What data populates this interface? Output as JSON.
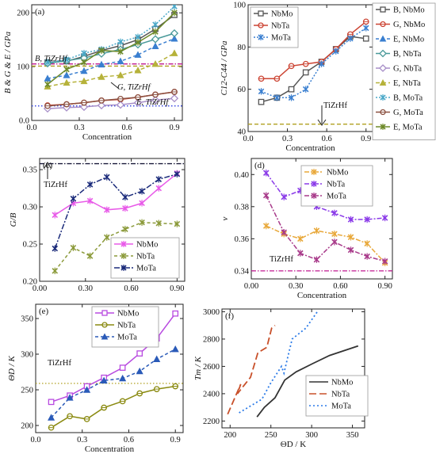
{
  "figure": {
    "panels": {
      "a": {
        "tag": "(a)",
        "ylabel": "B & G & E / GPa",
        "xlabel": "Concentration",
        "annotations": [
          "B, TiZrHf",
          "G, TiZrHf",
          "E, TiZrHf"
        ]
      },
      "b": {
        "tag": "(b)",
        "ylabel": "C12-C44 / GPa",
        "xlabel": "Concentration",
        "annotations": [
          "TiZrHf"
        ]
      },
      "c": {
        "tag": "(c)",
        "ylabel": "G/B",
        "xlabel": "Concentration",
        "annotations": [
          "TiZrHf"
        ]
      },
      "d": {
        "tag": "(d)",
        "ylabel": "ν",
        "xlabel": "Concentration",
        "annotations": [
          "TiZrHf"
        ]
      },
      "e": {
        "tag": "(e)",
        "ylabel": "ΘD / K",
        "xlabel": "Concentration",
        "annotations": [
          "TiZrHf"
        ]
      },
      "f": {
        "tag": "(f)",
        "ylabel": "Tm / K",
        "xlabel": "ΘD / K",
        "annotations": []
      }
    },
    "colors": {
      "NbMo": "#555555",
      "NbTa": "#cc4433",
      "MoTa": "#3a7fd0",
      "B_NbTa": "#4a9a9a",
      "G_NbTa": "#a88fc8",
      "E_NbTa": "#b6b23a",
      "MoTa_dotted": "#4aa8c8",
      "G_MoTa": "#8b5040",
      "E_MoTa": "#6e8a2a",
      "c_NbMo": "#e85ae8",
      "c_NbTa": "#8b9a3a",
      "c_MoTa": "#1a2a7a",
      "d_NbMo": "#e8a83a",
      "d_NbTa": "#8a3ae8",
      "d_MoTa": "#a83a8a",
      "e_NbMo": "#b84ae0",
      "e_NbTa": "#8a8a10",
      "e_MoTa": "#2a5ab8",
      "f_NbTa": "#c8502a",
      "f_MoTa": "#2a7ae8",
      "ref_magenta": "#c01890",
      "ref_blue": "#2a3ae0",
      "ref_olive": "#b0a020",
      "ref_black": "#1a1a3a"
    }
  },
  "chart_data": [
    {
      "panel": "a",
      "type": "line",
      "xlabel": "Concentration",
      "ylabel": "B & G & E / GPa",
      "xlim": [
        0,
        0.95
      ],
      "ylim": [
        0,
        215
      ],
      "xticks": [
        0.0,
        0.3,
        0.6,
        0.9
      ],
      "yticks": [
        0,
        100,
        200
      ],
      "x": [
        0.1,
        0.22,
        0.33,
        0.44,
        0.56,
        0.67,
        0.78,
        0.9
      ],
      "series": [
        {
          "name": "B, NbMo",
          "marker": "square",
          "values": [
            108,
            110,
            119,
            130,
            139,
            150,
            170,
            196
          ]
        },
        {
          "name": "G, NbMo",
          "marker": "circle",
          "values": [
            28,
            30,
            33,
            37,
            39,
            43,
            48,
            53
          ]
        },
        {
          "name": "E, NbMo",
          "marker": "triangle",
          "values": [
            78,
            84,
            92,
            104,
            110,
            122,
            138,
            152
          ]
        },
        {
          "name": "B, NbTa",
          "marker": "diamond",
          "values": [
            106,
            111,
            116,
            124,
            132,
            141,
            151,
            162
          ]
        },
        {
          "name": "G, NbTa",
          "marker": "diamond",
          "values": [
            22,
            24,
            25,
            28,
            29,
            33,
            38,
            41
          ]
        },
        {
          "name": "E, NbTa",
          "marker": "triangle",
          "values": [
            63,
            70,
            73,
            81,
            84,
            93,
            105,
            125
          ]
        },
        {
          "name": "B, MoTa",
          "marker": "star",
          "values": [
            108,
            113,
            125,
            132,
            146,
            155,
            178,
            212
          ]
        },
        {
          "name": "G, MoTa",
          "marker": "circle",
          "values": [
            27,
            30,
            33,
            37,
            40,
            43,
            48,
            53
          ]
        },
        {
          "name": "E, MoTa",
          "marker": "star",
          "values": [
            67,
            95,
            108,
            130,
            128,
            145,
            165,
            200
          ]
        }
      ],
      "references": [
        {
          "label": "B, TiZrHf",
          "value": 105,
          "style": "dash-dot",
          "color": "#c01890"
        },
        {
          "label": "G, TiZrHf",
          "value": 101,
          "style": "dashed",
          "color": "#b0a020"
        },
        {
          "label": "E, TiZrHf",
          "value": 27,
          "style": "dotted",
          "color": "#2a3ae0"
        }
      ],
      "legend": "outside-right"
    },
    {
      "panel": "b",
      "type": "line",
      "xlabel": "Concentration",
      "ylabel": "C12-C44 / GPa",
      "xlim": [
        0,
        0.95
      ],
      "ylim": [
        40,
        100
      ],
      "xticks": [
        0.0,
        0.3,
        0.6,
        0.9
      ],
      "yticks": [
        40,
        60,
        80,
        100
      ],
      "x": [
        0.1,
        0.22,
        0.33,
        0.44,
        0.56,
        0.67,
        0.78,
        0.9
      ],
      "series": [
        {
          "name": "NbMo",
          "marker": "square",
          "values": [
            54,
            56,
            60,
            68,
            73,
            79,
            85,
            84
          ]
        },
        {
          "name": "NbTa",
          "marker": "circle",
          "values": [
            65,
            65,
            71,
            72,
            73,
            79,
            86,
            92
          ]
        },
        {
          "name": "MoTa",
          "marker": "star",
          "values": [
            59,
            56,
            56,
            60,
            72,
            78,
            84,
            89
          ]
        }
      ],
      "references": [
        {
          "label": "TiZrHf",
          "value": 43.5,
          "style": "dashed",
          "color": "#b0a020"
        }
      ],
      "legend": "top-left"
    },
    {
      "panel": "c",
      "type": "line",
      "xlabel": "",
      "ylabel": "G/B",
      "xlim": [
        0,
        0.95
      ],
      "ylim": [
        0.2,
        0.365
      ],
      "xticks": [
        0.0,
        0.3,
        0.6,
        0.9
      ],
      "yticks": [
        0.2,
        0.25,
        0.3,
        0.35
      ],
      "x": [
        0.1,
        0.22,
        0.33,
        0.44,
        0.56,
        0.67,
        0.78,
        0.9
      ],
      "series": [
        {
          "name": "NbMo",
          "marker": "star",
          "values": [
            0.289,
            0.305,
            0.308,
            0.296,
            0.298,
            0.305,
            0.325,
            0.345
          ]
        },
        {
          "name": "NbTa",
          "marker": "star",
          "values": [
            0.214,
            0.245,
            0.234,
            0.259,
            0.27,
            0.279,
            0.278,
            0.277
          ]
        },
        {
          "name": "MoTa",
          "marker": "star",
          "values": [
            0.244,
            0.311,
            0.33,
            0.34,
            0.313,
            0.321,
            0.337,
            0.344
          ]
        }
      ],
      "references": [
        {
          "label": "TiZrHf",
          "value": 0.358,
          "style": "dash-dot",
          "color": "#1a1a3a"
        }
      ],
      "legend": "bottom-right"
    },
    {
      "panel": "d",
      "type": "line",
      "xlabel": "Concentration",
      "ylabel": "ν",
      "xlim": [
        0,
        0.95
      ],
      "ylim": [
        0.335,
        0.41
      ],
      "xticks": [
        0.0,
        0.3,
        0.6,
        0.9
      ],
      "yticks": [
        0.34,
        0.36,
        0.38,
        0.4
      ],
      "x": [
        0.1,
        0.22,
        0.33,
        0.44,
        0.56,
        0.67,
        0.78,
        0.9
      ],
      "series": [
        {
          "name": "NbMo",
          "marker": "star",
          "values": [
            0.368,
            0.363,
            0.36,
            0.365,
            0.363,
            0.361,
            0.357,
            0.345
          ]
        },
        {
          "name": "NbTa",
          "marker": "star",
          "values": [
            0.401,
            0.386,
            0.39,
            0.38,
            0.376,
            0.372,
            0.372,
            0.373
          ]
        },
        {
          "name": "MoTa",
          "marker": "star",
          "values": [
            0.387,
            0.364,
            0.351,
            0.347,
            0.358,
            0.353,
            0.349,
            0.346
          ]
        }
      ],
      "references": [
        {
          "label": "TiZrHf",
          "value": 0.34,
          "style": "dash-dot",
          "color": "#c01890"
        }
      ],
      "legend": "top-right"
    },
    {
      "panel": "e",
      "type": "line",
      "xlabel": "Concentration",
      "ylabel": "ΘD / K",
      "xlim": [
        0,
        0.95
      ],
      "ylim": [
        190,
        370
      ],
      "xticks": [
        0.0,
        0.3,
        0.6,
        0.9
      ],
      "yticks": [
        200,
        250,
        300,
        350
      ],
      "x": [
        0.1,
        0.22,
        0.33,
        0.44,
        0.56,
        0.67,
        0.78,
        0.9
      ],
      "series": [
        {
          "name": "NbMo",
          "marker": "square",
          "values": [
            233,
            242,
            255,
            267,
            281,
            301,
            322,
            357
          ]
        },
        {
          "name": "NbTa",
          "marker": "circle",
          "values": [
            197,
            213,
            209,
            225,
            234,
            245,
            251,
            255
          ]
        },
        {
          "name": "MoTa",
          "marker": "triangle",
          "values": [
            211,
            239,
            250,
            263,
            266,
            276,
            293,
            307
          ]
        }
      ],
      "references": [
        {
          "label": "TiZrHf",
          "value": 259,
          "style": "dotted",
          "color": "#b0a020"
        }
      ],
      "legend": "top-left"
    },
    {
      "panel": "f",
      "type": "line",
      "xlabel": "ΘD / K",
      "ylabel": "Tm / K",
      "xlim": [
        190,
        365
      ],
      "ylim": [
        2150,
        3020
      ],
      "xticks": [
        200,
        250,
        300,
        350
      ],
      "yticks": [
        2200,
        2400,
        2600,
        2800,
        3000
      ],
      "series": [
        {
          "name": "NbMo",
          "x": [
            233,
            242,
            255,
            267,
            281,
            301,
            322,
            357
          ],
          "values": [
            2230,
            2300,
            2370,
            2500,
            2560,
            2620,
            2680,
            2750
          ]
        },
        {
          "name": "NbTa",
          "x": [
            197,
            213,
            209,
            225,
            234,
            245,
            251,
            255
          ],
          "values": [
            2250,
            2470,
            2400,
            2520,
            2700,
            2740,
            2880,
            2900
          ]
        },
        {
          "name": "MoTa",
          "x": [
            211,
            239,
            250,
            263,
            266,
            276,
            293,
            307
          ],
          "values": [
            2260,
            2360,
            2480,
            2600,
            2550,
            2800,
            2880,
            3000
          ]
        }
      ],
      "legend": "bottom-right"
    }
  ]
}
